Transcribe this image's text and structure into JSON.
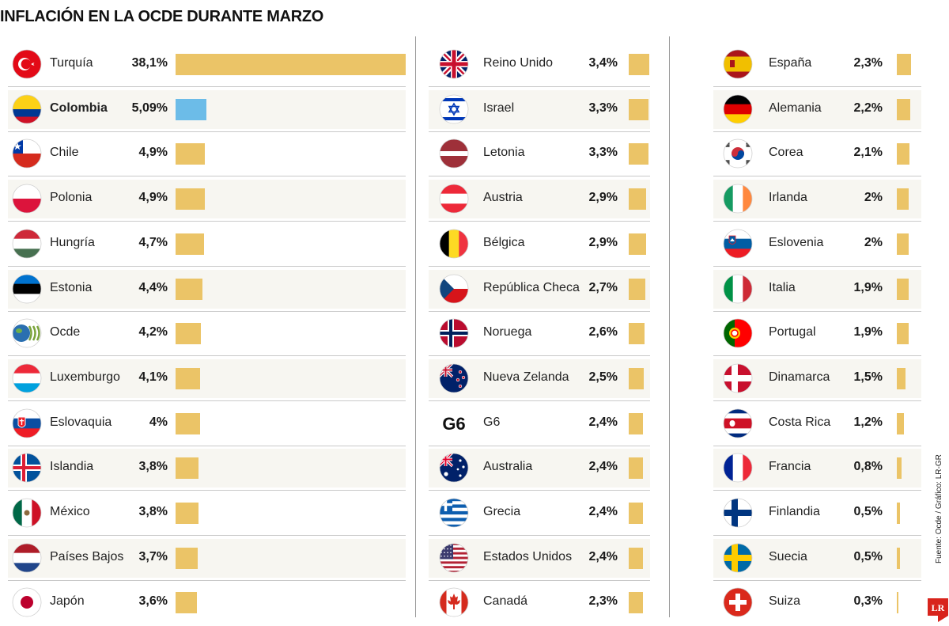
{
  "title": "INFLACIÓN EN LA OCDE DURANTE MARZO",
  "source": "Fuente: Ocde / Gráfico: LR-GR",
  "logo_text": "LR",
  "colors": {
    "bar": "#ebc467",
    "highlight": "#6cbce8"
  },
  "chart_data": {
    "type": "bar",
    "orientation": "horizontal",
    "title": "INFLACIÓN EN LA OCDE DURANTE MARZO",
    "unit": "%",
    "columns": [
      [
        {
          "country": "Turquía",
          "value": 38.1,
          "label": "38,1%",
          "flag": "turkey"
        },
        {
          "country": "Colombia",
          "value": 5.09,
          "label": "5,09%",
          "flag": "colombia",
          "highlight": true
        },
        {
          "country": "Chile",
          "value": 4.9,
          "label": "4,9%",
          "flag": "chile"
        },
        {
          "country": "Polonia",
          "value": 4.9,
          "label": "4,9%",
          "flag": "poland"
        },
        {
          "country": "Hungría",
          "value": 4.7,
          "label": "4,7%",
          "flag": "hungary"
        },
        {
          "country": "Estonia",
          "value": 4.4,
          "label": "4,4%",
          "flag": "estonia"
        },
        {
          "country": "Ocde",
          "value": 4.2,
          "label": "4,2%",
          "flag": "oecd"
        },
        {
          "country": "Luxemburgo",
          "value": 4.1,
          "label": "4,1%",
          "flag": "luxembourg"
        },
        {
          "country": "Eslovaquia",
          "value": 4.0,
          "label": "4%",
          "flag": "slovakia"
        },
        {
          "country": "Islandia",
          "value": 3.8,
          "label": "3,8%",
          "flag": "iceland"
        },
        {
          "country": "México",
          "value": 3.8,
          "label": "3,8%",
          "flag": "mexico"
        },
        {
          "country": "Países Bajos",
          "value": 3.7,
          "label": "3,7%",
          "flag": "netherlands"
        },
        {
          "country": "Japón",
          "value": 3.6,
          "label": "3,6%",
          "flag": "japan"
        }
      ],
      [
        {
          "country": "Reino Unido",
          "value": 3.4,
          "label": "3,4%",
          "flag": "uk"
        },
        {
          "country": "Israel",
          "value": 3.3,
          "label": "3,3%",
          "flag": "israel"
        },
        {
          "country": "Letonia",
          "value": 3.3,
          "label": "3,3%",
          "flag": "latvia"
        },
        {
          "country": "Austria",
          "value": 2.9,
          "label": "2,9%",
          "flag": "austria"
        },
        {
          "country": "Bélgica",
          "value": 2.9,
          "label": "2,9%",
          "flag": "belgium"
        },
        {
          "country": "República Checa",
          "value": 2.7,
          "label": "2,7%",
          "flag": "czech"
        },
        {
          "country": "Noruega",
          "value": 2.6,
          "label": "2,6%",
          "flag": "norway"
        },
        {
          "country": "Nueva Zelanda",
          "value": 2.5,
          "label": "2,5%",
          "flag": "newzealand"
        },
        {
          "country": "G6",
          "value": 2.4,
          "label": "2,4%",
          "flag": "g6",
          "flag_text": "G6"
        },
        {
          "country": "Australia",
          "value": 2.4,
          "label": "2,4%",
          "flag": "australia"
        },
        {
          "country": "Grecia",
          "value": 2.4,
          "label": "2,4%",
          "flag": "greece"
        },
        {
          "country": "Estados Unidos",
          "value": 2.4,
          "label": "2,4%",
          "flag": "usa"
        },
        {
          "country": "Canadá",
          "value": 2.3,
          "label": "2,3%",
          "flag": "canada"
        }
      ],
      [
        {
          "country": "España",
          "value": 2.3,
          "label": "2,3%",
          "flag": "spain"
        },
        {
          "country": "Alemania",
          "value": 2.2,
          "label": "2,2%",
          "flag": "germany"
        },
        {
          "country": "Corea",
          "value": 2.1,
          "label": "2,1%",
          "flag": "korea"
        },
        {
          "country": "Irlanda",
          "value": 2.0,
          "label": "2%",
          "flag": "ireland"
        },
        {
          "country": "Eslovenia",
          "value": 2.0,
          "label": "2%",
          "flag": "slovenia"
        },
        {
          "country": "Italia",
          "value": 1.9,
          "label": "1,9%",
          "flag": "italy"
        },
        {
          "country": "Portugal",
          "value": 1.9,
          "label": "1,9%",
          "flag": "portugal"
        },
        {
          "country": "Dinamarca",
          "value": 1.5,
          "label": "1,5%",
          "flag": "denmark"
        },
        {
          "country": "Costa Rica",
          "value": 1.2,
          "label": "1,2%",
          "flag": "costarica"
        },
        {
          "country": "Francia",
          "value": 0.8,
          "label": "0,8%",
          "flag": "france"
        },
        {
          "country": "Finlandia",
          "value": 0.5,
          "label": "0,5%",
          "flag": "finland"
        },
        {
          "country": "Suecia",
          "value": 0.5,
          "label": "0,5%",
          "flag": "sweden"
        },
        {
          "country": "Suiza",
          "value": 0.3,
          "label": "0,3%",
          "flag": "switzerland"
        }
      ]
    ]
  }
}
